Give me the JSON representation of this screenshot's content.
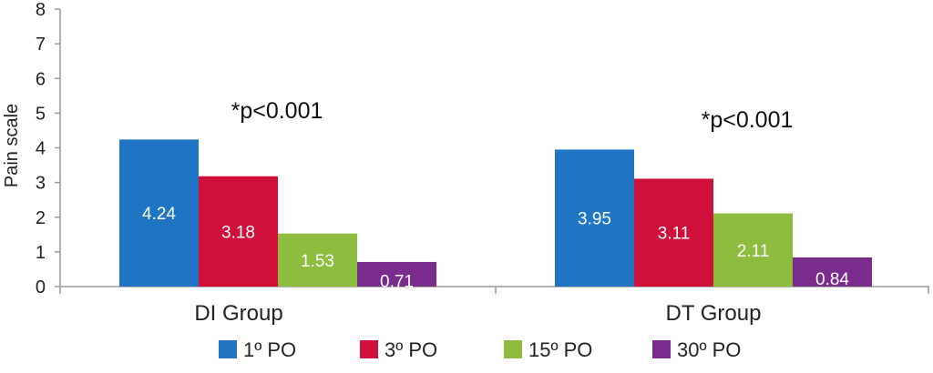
{
  "chart_data": {
    "type": "bar",
    "title": "",
    "ylabel": "Pain scale",
    "xlabel": "",
    "ylim": [
      0,
      8
    ],
    "yticks": [
      "0",
      "1",
      "2",
      "3",
      "4",
      "5",
      "6",
      "7",
      "8"
    ],
    "grid": false,
    "legend_position": "bottom",
    "categories": [
      "DI Group",
      "DT Group"
    ],
    "series": [
      {
        "name": "1º PO",
        "color": "#1f75c4",
        "values": [
          4.24,
          3.95
        ],
        "labels": [
          "4.24",
          "3.95"
        ]
      },
      {
        "name": "3º PO",
        "color": "#d0103a",
        "values": [
          3.18,
          3.11
        ],
        "labels": [
          "3.18",
          "3.11"
        ]
      },
      {
        "name": "15º PO",
        "color": "#8cbd3f",
        "values": [
          1.53,
          2.11
        ],
        "labels": [
          "1.53",
          "2.11"
        ]
      },
      {
        "name": "30º PO",
        "color": "#7a2c8c",
        "values": [
          0.71,
          0.84
        ],
        "labels": [
          "0.71",
          "0.84"
        ]
      }
    ],
    "annotations": [
      "*p<0.001",
      "*p<0.001"
    ]
  }
}
